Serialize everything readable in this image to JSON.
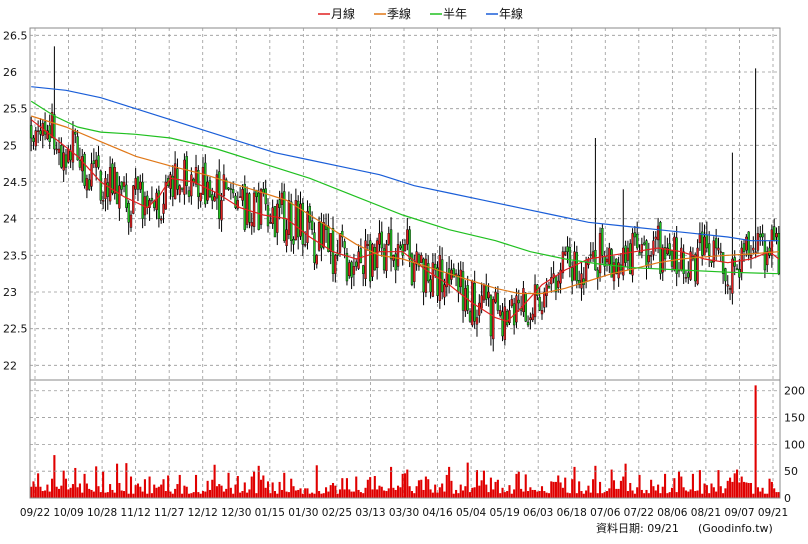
{
  "chart_data": {
    "type": "candlestick",
    "legend": [
      {
        "key": "ma20",
        "label": "月線",
        "color": "#e02020"
      },
      {
        "key": "ma60",
        "label": "季線",
        "color": "#e07818"
      },
      {
        "key": "ma120",
        "label": "半年",
        "color": "#20c020"
      },
      {
        "key": "ma240",
        "label": "年線",
        "color": "#1a5ed8"
      }
    ],
    "legend_position": "top-center",
    "price_axis": {
      "ticks": [
        "22",
        "22.5",
        "23",
        "23.5",
        "24",
        "24.5",
        "25",
        "25.5",
        "26",
        "26.5"
      ],
      "ylim": [
        21.8,
        26.6
      ],
      "side": "left"
    },
    "volume_axis": {
      "ticks": [
        "0",
        "50",
        "100",
        "150",
        "200"
      ],
      "ylim": [
        0,
        220
      ],
      "side": "right"
    },
    "x_tick_labels": [
      "09/22",
      "10/09",
      "10/28",
      "11/12",
      "11/27",
      "12/12",
      "12/30",
      "01/15",
      "01/30",
      "02/25",
      "03/13",
      "03/30",
      "04/16",
      "05/04",
      "05/19",
      "06/03",
      "06/18",
      "07/06",
      "07/22",
      "08/06",
      "08/21",
      "09/07",
      "09/21"
    ],
    "grid": true,
    "candle_colors": {
      "up": "#e02020",
      "down": "#20c020",
      "wick": "#000000"
    },
    "volume_color": "#e00000",
    "moving_averages": {
      "ma20": [
        [
          0,
          25.35
        ],
        [
          10,
          25.1
        ],
        [
          20,
          24.85
        ],
        [
          30,
          24.5
        ],
        [
          40,
          24.3
        ],
        [
          50,
          24.15
        ],
        [
          55,
          24.3
        ],
        [
          60,
          24.55
        ],
        [
          70,
          24.5
        ],
        [
          80,
          24.35
        ],
        [
          90,
          24.15
        ],
        [
          100,
          24.05
        ],
        [
          110,
          24.0
        ],
        [
          120,
          23.75
        ],
        [
          130,
          23.55
        ],
        [
          140,
          23.45
        ],
        [
          150,
          23.55
        ],
        [
          160,
          23.55
        ],
        [
          170,
          23.3
        ],
        [
          180,
          23.1
        ],
        [
          190,
          22.85
        ],
        [
          200,
          22.65
        ],
        [
          205,
          22.6
        ],
        [
          210,
          22.75
        ],
        [
          220,
          23.1
        ],
        [
          230,
          23.3
        ],
        [
          240,
          23.45
        ],
        [
          250,
          23.5
        ],
        [
          260,
          23.55
        ],
        [
          270,
          23.6
        ],
        [
          280,
          23.55
        ],
        [
          290,
          23.45
        ],
        [
          300,
          23.4
        ],
        [
          310,
          23.45
        ],
        [
          318,
          23.55
        ],
        [
          322,
          23.45
        ]
      ],
      "ma60": [
        [
          0,
          25.4
        ],
        [
          15,
          25.25
        ],
        [
          30,
          25.05
        ],
        [
          45,
          24.85
        ],
        [
          60,
          24.72
        ],
        [
          75,
          24.6
        ],
        [
          90,
          24.45
        ],
        [
          100,
          24.35
        ],
        [
          110,
          24.25
        ],
        [
          120,
          24.05
        ],
        [
          130,
          23.85
        ],
        [
          140,
          23.65
        ],
        [
          150,
          23.5
        ],
        [
          160,
          23.45
        ],
        [
          170,
          23.35
        ],
        [
          180,
          23.25
        ],
        [
          190,
          23.15
        ],
        [
          200,
          23.05
        ],
        [
          210,
          22.98
        ],
        [
          220,
          22.98
        ],
        [
          230,
          23.05
        ],
        [
          240,
          23.15
        ],
        [
          250,
          23.25
        ],
        [
          260,
          23.32
        ],
        [
          270,
          23.4
        ],
        [
          280,
          23.45
        ],
        [
          290,
          23.48
        ],
        [
          300,
          23.5
        ],
        [
          310,
          23.52
        ],
        [
          322,
          23.55
        ]
      ],
      "ma120": [
        [
          0,
          25.6
        ],
        [
          10,
          25.4
        ],
        [
          20,
          25.25
        ],
        [
          30,
          25.18
        ],
        [
          45,
          25.15
        ],
        [
          60,
          25.1
        ],
        [
          80,
          24.95
        ],
        [
          100,
          24.75
        ],
        [
          120,
          24.55
        ],
        [
          140,
          24.3
        ],
        [
          160,
          24.05
        ],
        [
          180,
          23.85
        ],
        [
          200,
          23.7
        ],
        [
          215,
          23.55
        ],
        [
          230,
          23.45
        ],
        [
          245,
          23.38
        ],
        [
          260,
          23.33
        ],
        [
          280,
          23.3
        ],
        [
          300,
          23.27
        ],
        [
          322,
          23.25
        ]
      ],
      "ma240": [
        [
          0,
          25.8
        ],
        [
          15,
          25.75
        ],
        [
          30,
          25.65
        ],
        [
          45,
          25.5
        ],
        [
          60,
          25.35
        ],
        [
          75,
          25.2
        ],
        [
          90,
          25.05
        ],
        [
          105,
          24.9
        ],
        [
          120,
          24.8
        ],
        [
          135,
          24.7
        ],
        [
          150,
          24.6
        ],
        [
          165,
          24.45
        ],
        [
          180,
          24.35
        ],
        [
          195,
          24.25
        ],
        [
          210,
          24.15
        ],
        [
          225,
          24.05
        ],
        [
          240,
          23.95
        ],
        [
          255,
          23.9
        ],
        [
          270,
          23.85
        ],
        [
          285,
          23.8
        ],
        [
          300,
          23.75
        ],
        [
          310,
          23.7
        ],
        [
          322,
          23.7
        ]
      ]
    },
    "spikes": [
      [
        10,
        26.35,
        80
      ],
      [
        243,
        25.1,
        60
      ],
      [
        255,
        24.4,
        40
      ],
      [
        302,
        24.9,
        30
      ],
      [
        312,
        26.05,
        210
      ]
    ],
    "ohlc": [],
    "volume": []
  },
  "footer": {
    "data_date": "資料日期: 09/21",
    "source": "(Goodinfo.tw)"
  }
}
